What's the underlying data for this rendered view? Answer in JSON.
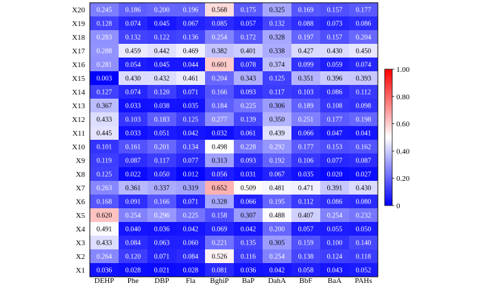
{
  "chart_data": {
    "type": "heatmap",
    "x_categories": [
      "DEHP",
      "Phe",
      "DBP",
      "Fla",
      "BghiP",
      "BaP",
      "DahA",
      "BbF",
      "BaA",
      "PAHs"
    ],
    "y_categories": [
      "X20",
      "X19",
      "X18",
      "X17",
      "X16",
      "X15",
      "X14",
      "X13",
      "X12",
      "X11",
      "X10",
      "X9",
      "X8",
      "X7",
      "X6",
      "X5",
      "X4",
      "X3",
      "X2",
      "X1"
    ],
    "values": [
      [
        "0.245",
        "0.186",
        "0.200",
        "0.196",
        "0.568",
        "0.175",
        "0.325",
        "0.169",
        "0.157",
        "0.177"
      ],
      [
        "0.128",
        "0.074",
        "0.045",
        "0.067",
        "0.085",
        "0.057",
        "0.132",
        "0.088",
        "0.073",
        "0.086"
      ],
      [
        "0.283",
        "0.132",
        "0.122",
        "0.136",
        "0.254",
        "0.172",
        "0.328",
        "0.197",
        "0.157",
        "0.204"
      ],
      [
        "0.288",
        "0.459",
        "0.442",
        "0.469",
        "0.382",
        "0.401",
        "0.338",
        "0.427",
        "0.430",
        "0.450"
      ],
      [
        "0.281",
        "0.054",
        "0.045",
        "0.044",
        "0.601",
        "0.078",
        "0.374",
        "0.099",
        "0.059",
        "0.074"
      ],
      [
        "0.003",
        "0.430",
        "0.432",
        "0.461",
        "0.204",
        "0.343",
        "0.125",
        "0.351",
        "0.396",
        "0.393"
      ],
      [
        "0.127",
        "0.074",
        "0.120",
        "0.071",
        "0.166",
        "0.093",
        "0.117",
        "0.103",
        "0.086",
        "0.112"
      ],
      [
        "0.367",
        "0.033",
        "0.038",
        "0.035",
        "0.184",
        "0.225",
        "0.306",
        "0.189",
        "0.108",
        "0.098"
      ],
      [
        "0.433",
        "0.103",
        "0.183",
        "0.125",
        "0.277",
        "0.139",
        "0.350",
        "0.251",
        "0.177",
        "0.198"
      ],
      [
        "0.445",
        "0.033",
        "0.051",
        "0.042",
        "0.032",
        "0.061",
        "0.439",
        "0.066",
        "0.047",
        "0.041"
      ],
      [
        "0.101",
        "0.161",
        "0.201",
        "0.134",
        "0.498",
        "0.228",
        "0.292",
        "0.177",
        "0.153",
        "0.162"
      ],
      [
        "0.119",
        "0.087",
        "0.117",
        "0.077",
        "0.313",
        "0.093",
        "0.192",
        "0.106",
        "0.077",
        "0.087"
      ],
      [
        "0.125",
        "0.022",
        "0.050",
        "0.012",
        "0.056",
        "0.031",
        "0.067",
        "0.035",
        "0.020",
        "0.027"
      ],
      [
        "0.263",
        "0.361",
        "0.337",
        "0.319",
        "0.652",
        "0.509",
        "0.481",
        "0.471",
        "0.391",
        "0.430"
      ],
      [
        "0.168",
        "0.091",
        "0.166",
        "0.071",
        "0.328",
        "0.066",
        "0.195",
        "0.112",
        "0.086",
        "0.080"
      ],
      [
        "0.620",
        "0.254",
        "0.296",
        "0.225",
        "0.158",
        "0.307",
        "0.488",
        "0.407",
        "0.254",
        "0.232"
      ],
      [
        "0.491",
        "0.040",
        "0.036",
        "0.042",
        "0.069",
        "0.042",
        "0.200",
        "0.057",
        "0.055",
        "0.050"
      ],
      [
        "0.433",
        "0.084",
        "0.063",
        "0.060",
        "0.221",
        "0.135",
        "0.305",
        "0.159",
        "0.100",
        "0.140"
      ],
      [
        "0.264",
        "0.120",
        "0.071",
        "0.084",
        "0.526",
        "0.116",
        "0.254",
        "0.138",
        "0.124",
        "0.118"
      ],
      [
        "0.036",
        "0.028",
        "0.021",
        "0.028",
        "0.081",
        "0.036",
        "0.042",
        "0.058",
        "0.043",
        "0.052"
      ]
    ],
    "colorbar": {
      "range": [
        0,
        1
      ],
      "tick_labels": [
        "0",
        "0.20",
        "0.40",
        "0.60",
        "0.80",
        "1.00"
      ],
      "colors": {
        "low": "#0000ff",
        "mid": "#ffffff",
        "high": "#ff0000"
      }
    }
  }
}
